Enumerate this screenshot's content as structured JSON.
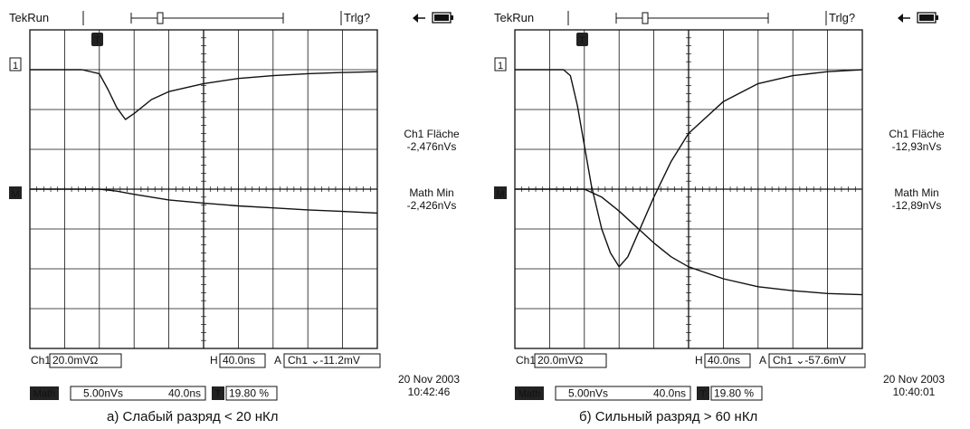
{
  "chart_data": [
    {
      "type": "line",
      "caption": "а) Слабый разряд < 20 нКл",
      "status": "TekRun",
      "trigger_status": "Trlg?",
      "ch1_marker": "1",
      "math_marker": "M",
      "trigger_marker": "T",
      "ch1_readout_label": "Ch1 Fläche",
      "ch1_readout_value": "-2,476nVs",
      "math_readout_label": "Math Min",
      "math_readout_value": "-2,426nVs",
      "ch1_scale_label": "Ch1",
      "ch1_scale": "20.0mVΩ",
      "time_label": "H",
      "time_scale": "40.0ns",
      "trigger_label": "A",
      "trigger_setting": "Ch1 ⌄-11.2mV",
      "math_label": "Math",
      "math_scale": "5.00nVs",
      "math_time": "40.0ns",
      "trigger_pos_label": "T",
      "trigger_pos": "19.80 %",
      "date": "20 Nov 2003",
      "time": "10:42:46",
      "xlim": [
        0,
        10
      ],
      "ylim": [
        0,
        8
      ],
      "grid": true,
      "series": [
        {
          "points": [
            [
              0,
              7.0
            ],
            [
              1.5,
              7.0
            ],
            [
              2.0,
              6.9
            ],
            [
              2.25,
              6.5
            ],
            [
              2.5,
              6.05
            ],
            [
              2.75,
              5.75
            ],
            [
              3.0,
              5.9
            ],
            [
              3.5,
              6.25
            ],
            [
              4.0,
              6.45
            ],
            [
              5.0,
              6.65
            ],
            [
              6.0,
              6.78
            ],
            [
              7.0,
              6.85
            ],
            [
              8.0,
              6.9
            ],
            [
              9.0,
              6.93
            ],
            [
              10.0,
              6.95
            ]
          ]
        },
        {
          "points": [
            [
              0,
              4.0
            ],
            [
              2.0,
              4.0
            ],
            [
              2.5,
              3.95
            ],
            [
              3.0,
              3.87
            ],
            [
              4.0,
              3.73
            ],
            [
              5.0,
              3.65
            ],
            [
              6.0,
              3.58
            ],
            [
              7.0,
              3.53
            ],
            [
              8.0,
              3.48
            ],
            [
              9.0,
              3.44
            ],
            [
              10.0,
              3.4
            ]
          ]
        }
      ]
    },
    {
      "type": "line",
      "caption": "б) Сильный разряд > 60 нКл",
      "status": "TekRun",
      "trigger_status": "Trlg?",
      "ch1_marker": "1",
      "math_marker": "M",
      "trigger_marker": "T",
      "ch1_readout_label": "Ch1 Fläche",
      "ch1_readout_value": "-12,93nVs",
      "math_readout_label": "Math Min",
      "math_readout_value": "-12,89nVs",
      "ch1_scale_label": "Ch1",
      "ch1_scale": "20.0mVΩ",
      "time_label": "H",
      "time_scale": "40.0ns",
      "trigger_label": "A",
      "trigger_setting": "Ch1 ⌄-57.6mV",
      "math_label": "Math",
      "math_scale": "5.00nVs",
      "math_time": "40.0ns",
      "trigger_pos_label": "T",
      "trigger_pos": "19.80 %",
      "date": "20 Nov 2003",
      "time": "10:40:01",
      "xlim": [
        0,
        10
      ],
      "ylim": [
        0,
        8
      ],
      "grid": true,
      "series": [
        {
          "points": [
            [
              0,
              7.0
            ],
            [
              1.4,
              7.0
            ],
            [
              1.6,
              6.85
            ],
            [
              1.8,
              6.1
            ],
            [
              2.0,
              5.1
            ],
            [
              2.2,
              4.1
            ],
            [
              2.5,
              3.0
            ],
            [
              2.75,
              2.4
            ],
            [
              3.0,
              2.05
            ],
            [
              3.25,
              2.3
            ],
            [
              3.5,
              2.8
            ],
            [
              4.0,
              3.8
            ],
            [
              4.5,
              4.7
            ],
            [
              5.0,
              5.4
            ],
            [
              6.0,
              6.2
            ],
            [
              7.0,
              6.65
            ],
            [
              8.0,
              6.85
            ],
            [
              9.0,
              6.95
            ],
            [
              10.0,
              7.0
            ]
          ]
        },
        {
          "points": [
            [
              0,
              4.0
            ],
            [
              2.0,
              4.0
            ],
            [
              2.5,
              3.8
            ],
            [
              3.0,
              3.45
            ],
            [
              3.5,
              3.05
            ],
            [
              4.0,
              2.65
            ],
            [
              4.5,
              2.3
            ],
            [
              5.0,
              2.05
            ],
            [
              6.0,
              1.75
            ],
            [
              7.0,
              1.55
            ],
            [
              8.0,
              1.45
            ],
            [
              9.0,
              1.38
            ],
            [
              10.0,
              1.35
            ]
          ]
        }
      ]
    }
  ]
}
